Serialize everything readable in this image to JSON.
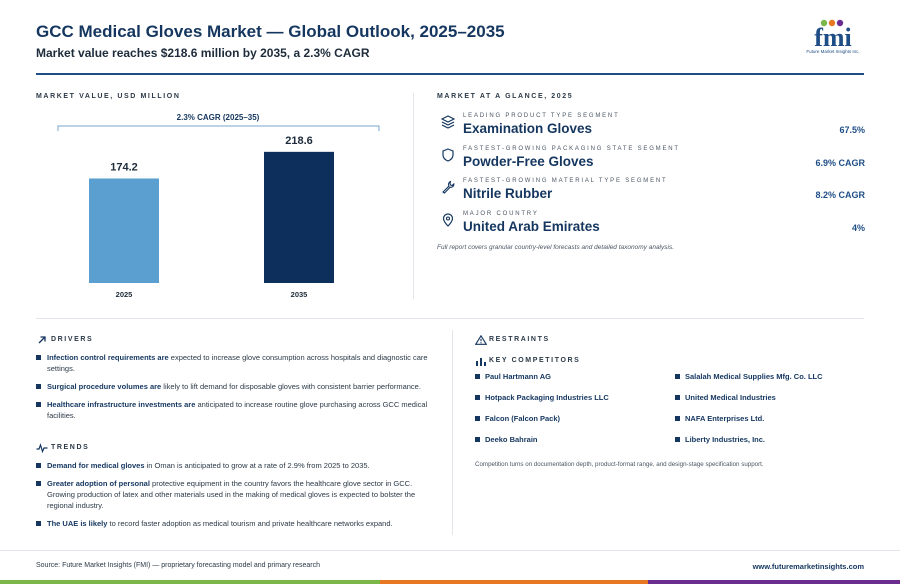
{
  "header": {
    "title": "GCC Medical Gloves Market — Global Outlook, 2025–2035",
    "subtitle": "Market value reaches $218.6 million by 2035, a 2.3% CAGR",
    "logo_text": "fmi",
    "logo_caption": "Future Market Insights Inc."
  },
  "market_value": {
    "label": "MARKET VALUE, USD MILLION",
    "cagr_label": "2.3% CAGR (2025–35)"
  },
  "chart_data": {
    "type": "bar",
    "categories": [
      "2025",
      "2035"
    ],
    "values": [
      174.2,
      218.6
    ],
    "colors": [
      "#5a9fd0",
      "#0d2f5c"
    ],
    "title": "MARKET VALUE, USD MILLION",
    "annotation": "2.3% CAGR (2025–35)",
    "xlabel": "",
    "ylabel": "",
    "grid": false
  },
  "glance": {
    "label": "MARKET AT A GLANCE, 2025",
    "rows": [
      {
        "label": "LEADING PRODUCT TYPE SEGMENT",
        "value": "Examination Gloves",
        "metric": "67.5%",
        "icon": "layers-icon"
      },
      {
        "label": "FASTEST-GROWING PACKAGING STATE SEGMENT",
        "value": "Powder-Free Gloves",
        "metric": "6.9% CAGR",
        "icon": "shield-icon"
      },
      {
        "label": "FASTEST-GROWING MATERIAL TYPE SEGMENT",
        "value": "Nitrile Rubber",
        "metric": "8.2% CAGR",
        "icon": "wrench-icon"
      },
      {
        "label": "MAJOR COUNTRY",
        "value": "United Arab Emirates",
        "metric": "4%",
        "icon": "map-pin-icon"
      }
    ],
    "note": "Full report covers granular country-level forecasts and detailed taxonomy analysis."
  },
  "drivers": {
    "label": "DRIVERS",
    "items": [
      {
        "bold": "Infection control requirements are",
        "text": " expected to increase glove consumption across hospitals and diagnostic care settings."
      },
      {
        "bold": "Surgical procedure volumes are",
        "text": " likely to lift demand for disposable gloves with consistent barrier performance."
      },
      {
        "bold": "Healthcare infrastructure investments are",
        "text": " anticipated to increase routine glove purchasing across GCC medical facilities."
      }
    ]
  },
  "trends": {
    "label": "TRENDS",
    "items": [
      {
        "bold": "Demand for medical gloves",
        "text": " in Oman is anticipated to grow at a rate of 2.9% from 2025 to 2035."
      },
      {
        "bold": "Greater adoption of personal",
        "text": " protective equipment in the country favors the healthcare glove sector in GCC. Growing production of latex and other materials used in the making of medical gloves is expected to bolster the regional industry."
      },
      {
        "bold": "The UAE is likely",
        "text": " to record faster adoption as medical tourism and private healthcare networks expand."
      }
    ]
  },
  "restraints": {
    "label": "RESTRAINTS"
  },
  "competitors": {
    "label": "KEY COMPETITORS",
    "items": [
      "Paul Hartmann AG",
      "Salalah Medical Supplies Mfg. Co. LLC",
      "Hotpack Packaging Industries LLC",
      "United Medical Industries",
      "Falcon (Falcon Pack)",
      "NAFA Enterprises Ltd.",
      "Deeko Bahrain",
      "Liberty Industries, Inc."
    ],
    "note": "Competition turns on documentation depth, product-format range, and design-stage specification support."
  },
  "footer": {
    "source": "Source: Future Market Insights (FMI) — proprietary forecasting model and primary research",
    "url": "www.futuremarketinsights.com"
  },
  "colors": {
    "navy": "#14365f",
    "bar_2025": "#5a9fd0",
    "bar_2035": "#0d2f5c",
    "stripe_green": "#7ab648",
    "stripe_orange": "#e87722",
    "stripe_purple": "#6a2c8e"
  }
}
